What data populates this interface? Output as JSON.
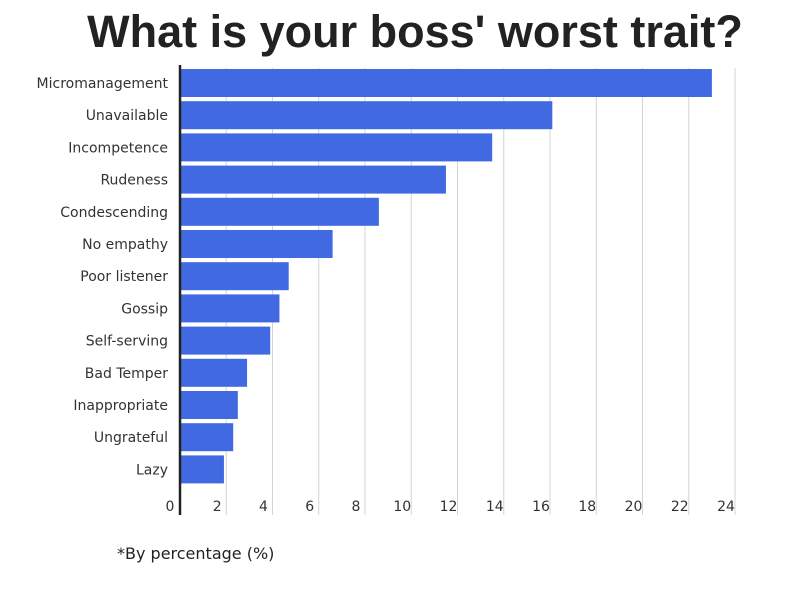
{
  "chart_data": {
    "type": "bar",
    "orientation": "horizontal",
    "title": "What is your boss' worst trait?",
    "footnote": "*By percentage (%)",
    "categories": [
      "Micromanagement",
      "Unavailable",
      "Incompetence",
      "Rudeness",
      "Condescending",
      "No empathy",
      "Poor listener",
      "Gossip",
      "Self-serving",
      "Bad Temper",
      "Inappropriate",
      "Ungrateful",
      "Lazy"
    ],
    "values": [
      23.0,
      16.1,
      13.5,
      11.5,
      8.6,
      6.6,
      4.7,
      4.3,
      3.9,
      2.9,
      2.5,
      2.3,
      1.9
    ],
    "x_ticks": [
      "0",
      "2",
      "4",
      "6",
      "8",
      "10",
      "12",
      "14",
      "16",
      "18",
      "20",
      "22",
      "24"
    ],
    "xlim": [
      0,
      24
    ],
    "bar_color": "#4169e1",
    "grid": true
  }
}
